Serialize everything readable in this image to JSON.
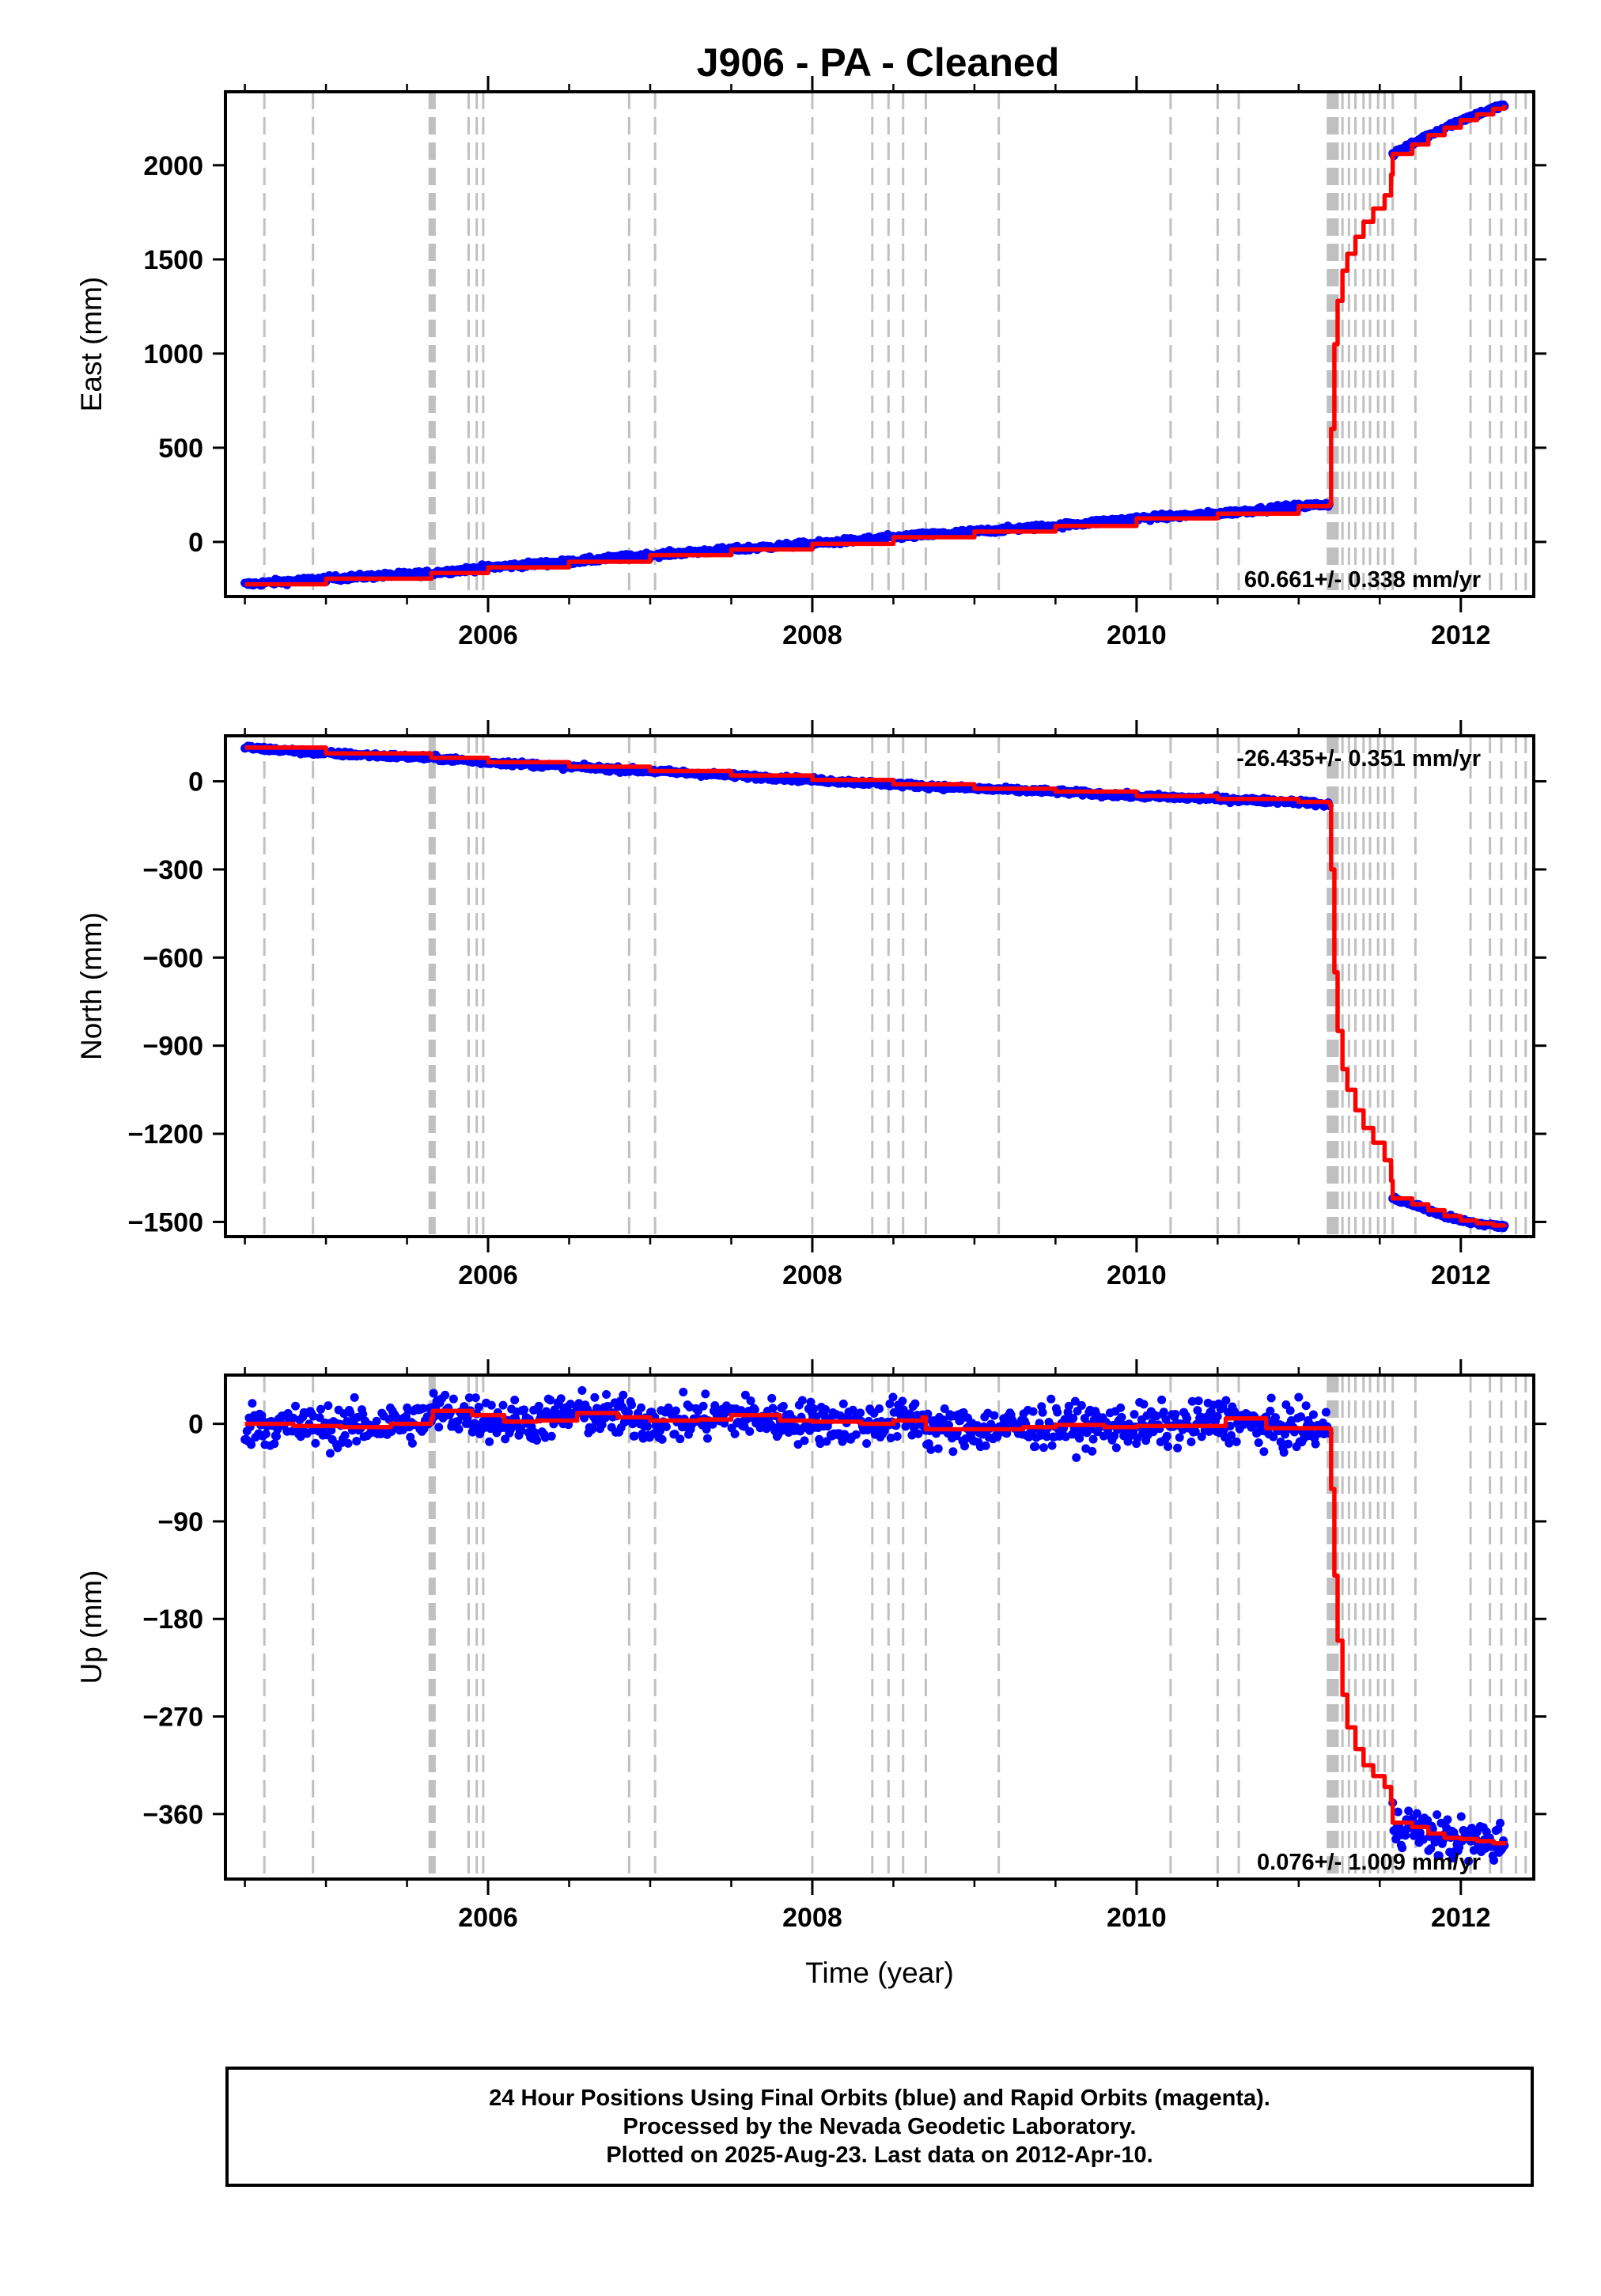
{
  "chart_data": {
    "title": "J906  - PA - Cleaned",
    "xlabel": "Time (year)",
    "xlim": [
      2004.38,
      2012.45
    ],
    "x_ticks": [
      2006,
      2008,
      2010,
      2012
    ],
    "x_minor_ticks": [
      2004.5,
      2005,
      2005.5,
      2006,
      2006.5,
      2007,
      2007.5,
      2008,
      2008.5,
      2009,
      2009.5,
      2010,
      2010.5,
      2011,
      2011.5,
      2012
    ],
    "dashed_lines_x": [
      2004.62,
      2004.92,
      2005.64,
      2005.65,
      2005.66,
      2005.67,
      2005.88,
      2005.93,
      2005.97,
      2006.87,
      2007.03,
      2008.0,
      2008.37,
      2008.47,
      2008.56,
      2008.7,
      2009.15,
      2010.21,
      2010.5,
      2010.63,
      2011.18,
      2011.19,
      2011.2,
      2011.21,
      2011.22,
      2011.23,
      2011.24,
      2011.27,
      2011.31,
      2011.35,
      2011.4,
      2011.44,
      2011.49,
      2011.53,
      2011.58,
      2011.72,
      2012.06,
      2012.18,
      2012.25,
      2012.34,
      2012.4
    ],
    "panels": [
      {
        "ylabel": "East (mm)",
        "ylim": [
          -290,
          2390
        ],
        "y_ticks": [
          0,
          500,
          1000,
          1500,
          2000
        ],
        "y_tick_labels": [
          "0",
          "500",
          "1000",
          "1500",
          "2000"
        ],
        "rate_text": "60.661+/- 0.338 mm/yr",
        "rate_position": "bottom-right",
        "scatter_spread": 10,
        "trace": [
          [
            2004.5,
            -225
          ],
          [
            2005.0,
            -195
          ],
          [
            2005.65,
            -165
          ],
          [
            2006.0,
            -135
          ],
          [
            2006.5,
            -105
          ],
          [
            2007.0,
            -70
          ],
          [
            2007.5,
            -40
          ],
          [
            2008.0,
            -10
          ],
          [
            2008.5,
            25
          ],
          [
            2009.0,
            55
          ],
          [
            2009.5,
            85
          ],
          [
            2010.0,
            125
          ],
          [
            2010.5,
            150
          ],
          [
            2011.0,
            190
          ],
          [
            2011.19,
            200
          ],
          [
            2011.2,
            600
          ],
          [
            2011.22,
            1050
          ],
          [
            2011.24,
            1280
          ],
          [
            2011.27,
            1440
          ],
          [
            2011.3,
            1530
          ],
          [
            2011.35,
            1620
          ],
          [
            2011.4,
            1700
          ],
          [
            2011.46,
            1770
          ],
          [
            2011.53,
            1840
          ],
          [
            2011.57,
            1950
          ],
          [
            2011.58,
            2060
          ],
          [
            2011.7,
            2110
          ],
          [
            2011.8,
            2160
          ],
          [
            2011.9,
            2200
          ],
          [
            2012.0,
            2240
          ],
          [
            2012.1,
            2270
          ],
          [
            2012.2,
            2300
          ],
          [
            2012.27,
            2320
          ]
        ],
        "scatter_segments": [
          [
            2004.5,
            2011.19
          ],
          [
            2011.58,
            2012.27
          ]
        ]
      },
      {
        "ylabel": "North (mm)",
        "ylim": [
          -1550,
          155
        ],
        "y_ticks": [
          0,
          -300,
          -600,
          -900,
          -1200,
          -1500
        ],
        "y_tick_labels": [
          "0",
          "−300",
          "−600",
          "−900",
          "−1200",
          "−1500"
        ],
        "rate_text": "-26.435+/- 0.351 mm/yr",
        "rate_position": "top-right",
        "scatter_spread": 6,
        "trace": [
          [
            2004.5,
            115
          ],
          [
            2005.0,
            95
          ],
          [
            2005.65,
            80
          ],
          [
            2006.0,
            65
          ],
          [
            2006.5,
            50
          ],
          [
            2007.0,
            35
          ],
          [
            2007.5,
            20
          ],
          [
            2008.0,
            5
          ],
          [
            2008.5,
            -10
          ],
          [
            2009.0,
            -25
          ],
          [
            2009.5,
            -35
          ],
          [
            2010.0,
            -50
          ],
          [
            2010.5,
            -60
          ],
          [
            2011.0,
            -70
          ],
          [
            2011.19,
            -80
          ],
          [
            2011.2,
            -300
          ],
          [
            2011.22,
            -650
          ],
          [
            2011.24,
            -850
          ],
          [
            2011.27,
            -980
          ],
          [
            2011.3,
            -1050
          ],
          [
            2011.35,
            -1120
          ],
          [
            2011.4,
            -1180
          ],
          [
            2011.46,
            -1230
          ],
          [
            2011.53,
            -1290
          ],
          [
            2011.57,
            -1360
          ],
          [
            2011.58,
            -1420
          ],
          [
            2011.7,
            -1440
          ],
          [
            2011.8,
            -1460
          ],
          [
            2011.9,
            -1480
          ],
          [
            2012.0,
            -1495
          ],
          [
            2012.1,
            -1505
          ],
          [
            2012.2,
            -1512
          ],
          [
            2012.27,
            -1518
          ]
        ],
        "scatter_segments": [
          [
            2004.5,
            2011.19
          ],
          [
            2011.58,
            2012.27
          ]
        ]
      },
      {
        "ylabel": "Up (mm)",
        "ylim": [
          -420,
          45
        ],
        "y_ticks": [
          0,
          -90,
          -180,
          -270,
          -360
        ],
        "y_tick_labels": [
          "0",
          "−90",
          "−180",
          "−270",
          "−360"
        ],
        "rate_text": "0.076+/- 1.009 mm/yr",
        "rate_position": "bottom-right",
        "scatter_spread": 14,
        "trace": [
          [
            2004.5,
            0
          ],
          [
            2004.8,
            -2
          ],
          [
            2005.1,
            -3
          ],
          [
            2005.4,
            0
          ],
          [
            2005.65,
            5
          ],
          [
            2005.66,
            12
          ],
          [
            2005.9,
            8
          ],
          [
            2006.1,
            2
          ],
          [
            2006.3,
            3
          ],
          [
            2006.55,
            10
          ],
          [
            2006.8,
            6
          ],
          [
            2007.0,
            3
          ],
          [
            2007.3,
            4
          ],
          [
            2007.5,
            8
          ],
          [
            2007.8,
            3
          ],
          [
            2008.0,
            2
          ],
          [
            2008.3,
            0
          ],
          [
            2008.5,
            3
          ],
          [
            2008.68,
            6
          ],
          [
            2008.7,
            -5
          ],
          [
            2009.0,
            -5
          ],
          [
            2009.3,
            -3
          ],
          [
            2009.5,
            -1
          ],
          [
            2009.8,
            -3
          ],
          [
            2010.0,
            -2
          ],
          [
            2010.3,
            -2
          ],
          [
            2010.55,
            5
          ],
          [
            2010.8,
            -4
          ],
          [
            2011.19,
            -5
          ],
          [
            2011.2,
            -60
          ],
          [
            2011.22,
            -140
          ],
          [
            2011.24,
            -200
          ],
          [
            2011.27,
            -250
          ],
          [
            2011.3,
            -280
          ],
          [
            2011.35,
            -300
          ],
          [
            2011.4,
            -315
          ],
          [
            2011.46,
            -325
          ],
          [
            2011.53,
            -335
          ],
          [
            2011.57,
            -348
          ],
          [
            2011.58,
            -368
          ],
          [
            2011.7,
            -372
          ],
          [
            2011.8,
            -378
          ],
          [
            2011.9,
            -382
          ],
          [
            2012.0,
            -383
          ],
          [
            2012.1,
            -385
          ],
          [
            2012.2,
            -387
          ],
          [
            2012.27,
            -385
          ]
        ],
        "scatter_segments": [
          [
            2004.5,
            2011.19
          ],
          [
            2011.58,
            2012.27
          ]
        ]
      }
    ]
  },
  "footer": {
    "line1": "24 Hour Positions Using Final Orbits (blue) and Rapid Orbits (magenta).",
    "line2": "Processed by the Nevada Geodetic Laboratory.",
    "line3": "Plotted on 2025-Aug-23. Last data on 2012-Apr-10."
  },
  "colors": {
    "scatter": "#0000ff",
    "trace": "#ff0000",
    "dashed": "#c0c0c0",
    "frame": "#000000"
  }
}
